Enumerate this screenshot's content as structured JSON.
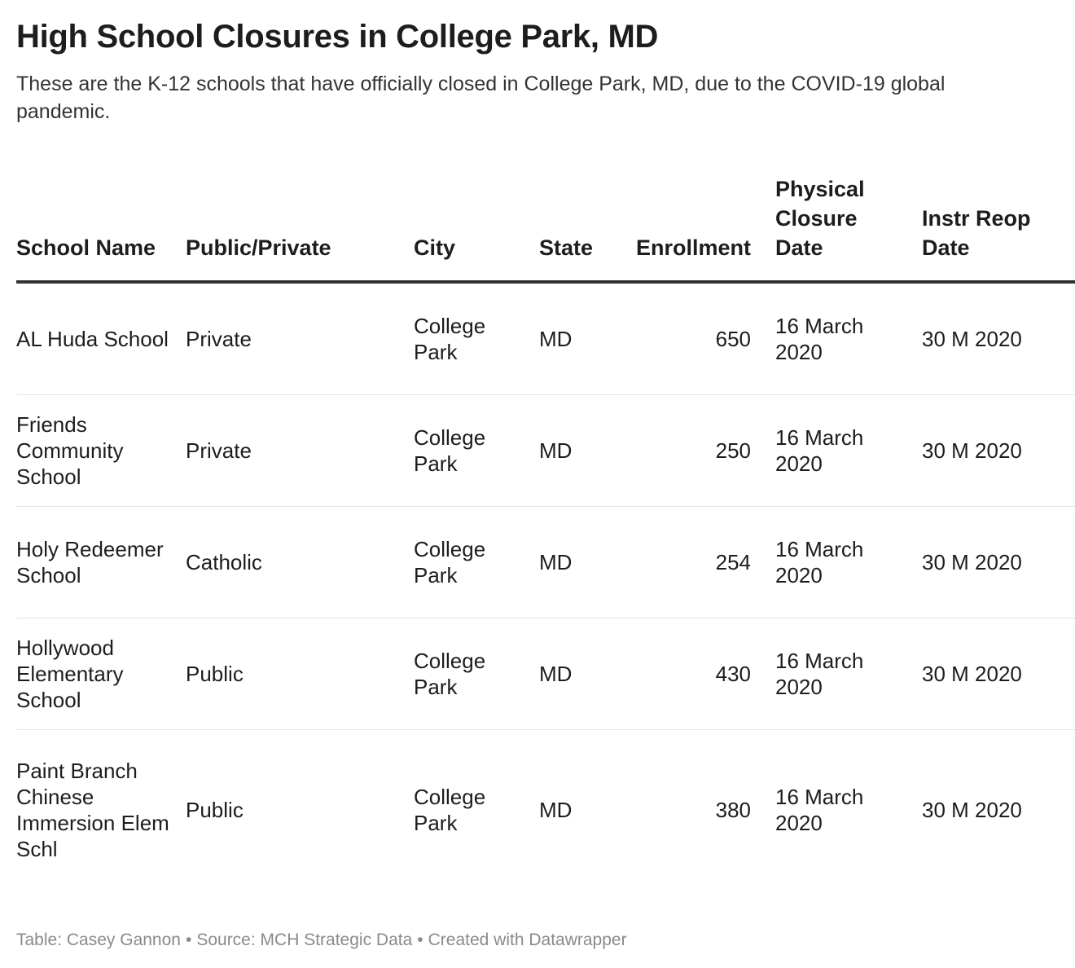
{
  "header": {
    "title": "High School Closures in College Park, MD",
    "description": "These are the K-12 schools that have officially closed in College Park, MD, due to the COVID-19 global pandemic."
  },
  "chart_data": {
    "type": "table",
    "columns": [
      "School Name",
      "Public/Private",
      "City",
      "State",
      "Enrollment",
      "Physical Closure Date",
      "Instr Reop Date"
    ],
    "rows": [
      [
        "AL Huda School",
        "Private",
        "College Park",
        "MD",
        "650",
        "16 March 2020",
        "30 M 2020"
      ],
      [
        "Friends Community School",
        "Private",
        "College Park",
        "MD",
        "250",
        "16 March 2020",
        "30 M 2020"
      ],
      [
        "Holy Redeemer School",
        "Catholic",
        "College Park",
        "MD",
        "254",
        "16 March 2020",
        "30 M 2020"
      ],
      [
        "Hollywood Elementary School",
        "Public",
        "College Park",
        "MD",
        "430",
        "16 March 2020",
        "30 M 2020"
      ],
      [
        "Paint Branch Chinese Immersion Elem Schl",
        "Public",
        "College Park",
        "MD",
        "380",
        "16 March 2020",
        "30 M 2020"
      ]
    ]
  },
  "footer": {
    "table_credit": "Table: Casey Gannon",
    "source": "Source: MCH Strategic Data",
    "created_with": "Created with Datawrapper",
    "separator": "•"
  }
}
